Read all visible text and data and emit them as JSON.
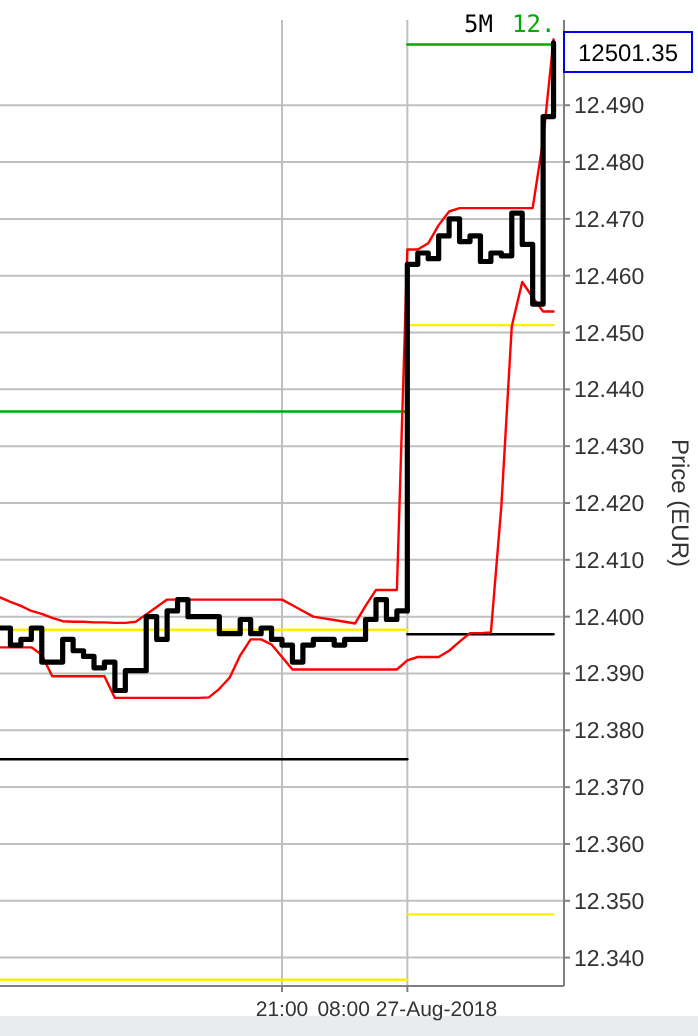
{
  "chart_data": {
    "type": "line",
    "subtitle": "5M",
    "ylabel": "Price (EUR)",
    "annotations": [
      "12.",
      "12501.35"
    ],
    "categories": [
      null,
      null,
      null,
      null,
      null,
      null,
      null,
      null,
      null,
      null,
      null,
      null,
      null,
      null,
      null,
      null,
      null,
      null,
      null,
      null,
      null,
      null,
      null,
      null,
      null,
      null,
      null,
      "21:00",
      null,
      null,
      null,
      null,
      null,
      null,
      null,
      null,
      null,
      null,
      null,
      "08:00 27-Aug-2018",
      null,
      null,
      null,
      null,
      null,
      null,
      null,
      null,
      null,
      null,
      null,
      null,
      null,
      null
    ],
    "ylim": [
      12.335,
      12.505
    ],
    "yticks": [
      {
        "value": 12.34,
        "label": "12.340"
      },
      {
        "value": 12.35,
        "label": "12.350"
      },
      {
        "value": 12.36,
        "label": "12.360"
      },
      {
        "value": 12.37,
        "label": "12.370"
      },
      {
        "value": 12.38,
        "label": "12.380"
      },
      {
        "value": 12.39,
        "label": "12.390"
      },
      {
        "value": 12.4,
        "label": "12.400"
      },
      {
        "value": 12.41,
        "label": "12.410"
      },
      {
        "value": 12.42,
        "label": "12.420"
      },
      {
        "value": 12.43,
        "label": "12.430"
      },
      {
        "value": 12.44,
        "label": "12.440"
      },
      {
        "value": 12.45,
        "label": "12.450"
      },
      {
        "value": 12.46,
        "label": "12.460"
      },
      {
        "value": 12.47,
        "label": "12.470"
      },
      {
        "value": 12.48,
        "label": "12.480"
      },
      {
        "value": 12.49,
        "label": "12.490"
      }
    ],
    "grid": true,
    "marker": "none",
    "series": [
      {
        "color": "#00aa00",
        "values": [
          12.4361,
          12.4361,
          12.4361,
          12.4361,
          12.4361,
          12.4361,
          12.4361,
          12.4361,
          12.4361,
          12.4361,
          12.4361,
          12.4361,
          12.4361,
          12.4361,
          12.4361,
          12.4361,
          12.4361,
          12.4361,
          12.4361,
          12.4361,
          12.4361,
          12.4361,
          12.4361,
          12.4361,
          12.4361,
          12.4361,
          12.4361,
          12.4361,
          12.4361,
          12.4361,
          12.4361,
          12.4361,
          12.4361,
          12.4361,
          12.4361,
          12.4361,
          12.4361,
          12.4361,
          12.4361,
          12.4361,
          null,
          null,
          null,
          null,
          null,
          null,
          null,
          null,
          null,
          null,
          null,
          null,
          null,
          null
        ]
      },
      {
        "color": "#00aa00",
        "values": [
          null,
          null,
          null,
          null,
          null,
          null,
          null,
          null,
          null,
          null,
          null,
          null,
          null,
          null,
          null,
          null,
          null,
          null,
          null,
          null,
          null,
          null,
          null,
          null,
          null,
          null,
          null,
          null,
          null,
          null,
          null,
          null,
          null,
          null,
          null,
          null,
          null,
          null,
          null,
          12.5007,
          12.5007,
          12.5007,
          12.5007,
          12.5007,
          12.5007,
          12.5007,
          12.5007,
          12.5007,
          12.5007,
          12.5007,
          12.5007,
          12.5007,
          12.5007,
          12.5007
        ]
      },
      {
        "color": "#ffee00",
        "values": [
          null,
          12.3977,
          12.3977,
          12.3977,
          12.3977,
          12.3977,
          12.3977,
          12.3977,
          12.3977,
          12.3977,
          12.3977,
          12.3977,
          12.3977,
          12.3977,
          12.3977,
          12.3977,
          12.3977,
          12.3977,
          12.3977,
          12.3977,
          12.3977,
          12.3977,
          12.3977,
          12.3977,
          12.3977,
          12.3977,
          12.3977,
          12.3977,
          12.3977,
          12.3977,
          12.3977,
          12.3977,
          12.3977,
          12.3977,
          12.3977,
          12.3977,
          12.3977,
          12.3977,
          12.3977,
          12.3977,
          null,
          null,
          null,
          null,
          null,
          null,
          null,
          null,
          null,
          null,
          null,
          null,
          null,
          null
        ]
      },
      {
        "color": "#ffee00",
        "values": [
          null,
          null,
          null,
          null,
          null,
          null,
          null,
          null,
          null,
          null,
          null,
          null,
          null,
          null,
          null,
          null,
          null,
          null,
          null,
          null,
          null,
          null,
          null,
          null,
          null,
          null,
          null,
          null,
          null,
          null,
          null,
          null,
          null,
          null,
          null,
          null,
          null,
          null,
          null,
          12.4513,
          12.4513,
          12.4513,
          12.4513,
          12.4513,
          12.4513,
          12.4513,
          12.4513,
          12.4513,
          12.4513,
          12.4513,
          12.4513,
          12.4513,
          12.4513,
          12.4513
        ]
      },
      {
        "color": "#ffee00",
        "values": [
          12.3361,
          12.3361,
          12.3361,
          12.3361,
          12.3361,
          12.3361,
          12.3361,
          12.3361,
          12.3361,
          12.3361,
          12.3361,
          12.3361,
          12.3361,
          12.3361,
          12.3361,
          12.3361,
          12.3361,
          12.3361,
          12.3361,
          12.3361,
          12.3361,
          12.3361,
          12.3361,
          12.3361,
          12.3361,
          12.3361,
          12.3361,
          12.3361,
          12.3361,
          12.3361,
          12.3361,
          12.3361,
          12.3361,
          12.3361,
          12.3361,
          12.3361,
          12.3361,
          12.3361,
          12.3361,
          12.3361,
          null,
          null,
          null,
          null,
          null,
          null,
          null,
          null,
          null,
          null,
          null,
          null,
          null,
          null
        ]
      },
      {
        "color": "#ffee00",
        "values": [
          null,
          null,
          null,
          null,
          null,
          null,
          null,
          null,
          null,
          null,
          null,
          null,
          null,
          null,
          null,
          null,
          null,
          null,
          null,
          null,
          null,
          null,
          null,
          null,
          null,
          null,
          null,
          null,
          null,
          null,
          null,
          null,
          null,
          null,
          null,
          null,
          null,
          null,
          null,
          12.3476,
          12.3476,
          12.3476,
          12.3476,
          12.3476,
          12.3476,
          12.3476,
          12.3476,
          12.3476,
          12.3476,
          12.3476,
          12.3476,
          12.3476,
          12.3476,
          12.3476
        ]
      },
      {
        "color": "#000000",
        "values": [
          12.3749,
          12.3749,
          12.3749,
          12.3749,
          12.3749,
          12.3749,
          12.3749,
          12.3749,
          12.3749,
          12.3749,
          12.3749,
          12.3749,
          12.3749,
          12.3749,
          12.3749,
          12.3749,
          12.3749,
          12.3749,
          12.3749,
          12.3749,
          12.3749,
          12.3749,
          12.3749,
          12.3749,
          12.3749,
          12.3749,
          12.3749,
          12.3749,
          12.3749,
          12.3749,
          12.3749,
          12.3749,
          12.3749,
          12.3749,
          12.3749,
          12.3749,
          12.3749,
          12.3749,
          12.3749,
          12.3749,
          null,
          null,
          null,
          null,
          null,
          null,
          null,
          null,
          null,
          null,
          null,
          null,
          null,
          null
        ]
      },
      {
        "color": "#000000",
        "values": [
          null,
          null,
          null,
          null,
          null,
          null,
          null,
          null,
          null,
          null,
          null,
          null,
          null,
          null,
          null,
          null,
          null,
          null,
          null,
          null,
          null,
          null,
          null,
          null,
          null,
          null,
          null,
          null,
          null,
          null,
          null,
          null,
          null,
          null,
          null,
          null,
          null,
          null,
          null,
          12.3969,
          12.3969,
          12.3969,
          12.3969,
          12.3969,
          12.3969,
          12.3969,
          12.3969,
          12.3969,
          12.3969,
          12.3969,
          12.3969,
          12.3969,
          12.3969,
          12.3969
        ]
      },
      {
        "color": "#ff0000",
        "values": [
          12.4034,
          12.4026,
          12.4019,
          12.401,
          12.4005,
          12.3998,
          12.3992,
          12.3991,
          12.3991,
          12.399,
          12.399,
          12.3989,
          12.3989,
          12.3991,
          12.4004,
          12.4017,
          12.403,
          12.403,
          12.403,
          12.403,
          12.403,
          12.403,
          12.403,
          12.403,
          12.403,
          12.403,
          12.403,
          12.403,
          12.402,
          12.401,
          12.4,
          12.3997,
          12.3994,
          12.3991,
          12.3988,
          12.4019,
          12.4047,
          12.4047,
          12.4047,
          12.4646,
          12.4646,
          12.4657,
          12.4689,
          12.4713,
          12.4719,
          12.4719,
          12.4719,
          12.4719,
          12.4719,
          12.4719,
          12.4719,
          12.4719,
          12.4838,
          12.5016
        ]
      },
      {
        "color": "#ff0000",
        "values": [
          12.3946,
          12.3946,
          12.3946,
          12.3946,
          12.3933,
          12.3895,
          12.3895,
          12.3895,
          12.3895,
          12.3895,
          12.3895,
          12.3857,
          12.3857,
          12.3857,
          12.3857,
          12.3857,
          12.3857,
          12.3857,
          12.3857,
          12.3857,
          12.3858,
          12.3873,
          12.3893,
          12.3932,
          12.396,
          12.396,
          12.3951,
          12.3929,
          12.3907,
          12.3907,
          12.3907,
          12.3907,
          12.3907,
          12.3907,
          12.3907,
          12.3907,
          12.3907,
          12.3907,
          12.3907,
          12.3923,
          12.3929,
          12.3929,
          12.3929,
          12.394,
          12.3956,
          12.3971,
          12.3971,
          12.3972,
          12.4194,
          12.4511,
          12.4589,
          12.4562,
          12.4537,
          12.4537
        ]
      },
      {
        "type": "step",
        "color": "#000000",
        "values": [
          12.398,
          12.395,
          12.396,
          12.398,
          12.392,
          12.392,
          12.396,
          12.394,
          12.393,
          12.391,
          12.392,
          12.387,
          12.3905,
          12.3905,
          12.4,
          12.396,
          12.401,
          12.403,
          12.4,
          12.4,
          12.4,
          12.397,
          12.397,
          12.3995,
          12.397,
          12.398,
          12.396,
          12.395,
          12.392,
          12.395,
          12.396,
          12.396,
          12.395,
          12.396,
          12.396,
          12.3995,
          12.403,
          12.3995,
          12.401,
          12.462,
          12.464,
          12.463,
          12.467,
          12.47,
          12.466,
          12.467,
          12.4625,
          12.464,
          12.4635,
          12.471,
          12.4655,
          12.455,
          12.488,
          12.501
        ]
      }
    ]
  }
}
